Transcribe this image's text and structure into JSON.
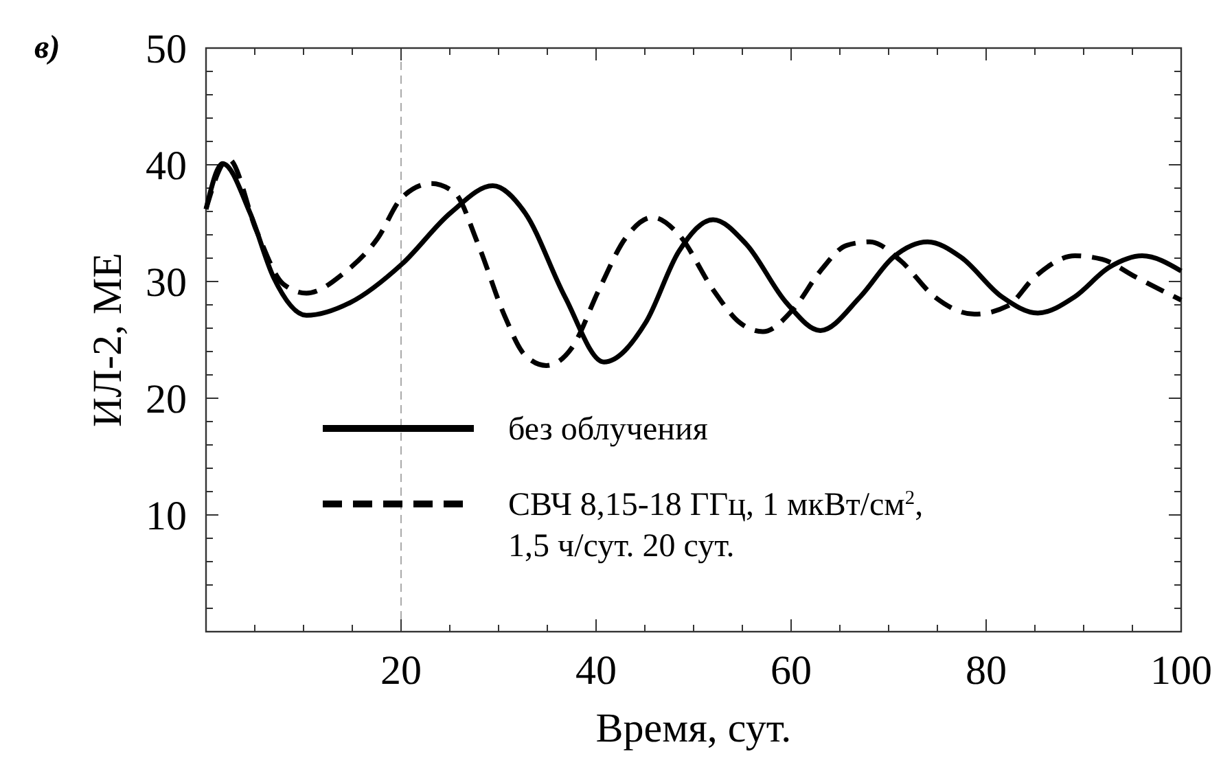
{
  "chart_data": {
    "type": "line",
    "annotations": [
      "в)"
    ],
    "xlabel": "Время, сут.",
    "ylabel": "ИЛ-2, МЕ",
    "xlim": [
      0,
      100
    ],
    "ylim": [
      0,
      50
    ],
    "xticks": [
      {
        "value": 5,
        "label": null
      },
      {
        "value": 10,
        "label": null
      },
      {
        "value": 15,
        "label": null
      },
      20,
      {
        "value": 25,
        "label": null
      },
      {
        "value": 30,
        "label": null
      },
      {
        "value": 35,
        "label": null
      },
      40,
      {
        "value": 45,
        "label": null
      },
      {
        "value": 50,
        "label": null
      },
      {
        "value": 55,
        "label": null
      },
      60,
      {
        "value": 65,
        "label": null
      },
      {
        "value": 70,
        "label": null
      },
      {
        "value": 75,
        "label": null
      },
      80,
      {
        "value": 85,
        "label": null
      },
      {
        "value": 90,
        "label": null
      },
      {
        "value": 95,
        "label": null
      },
      100
    ],
    "yticks": [
      {
        "value": 2,
        "label": null
      },
      {
        "value": 4,
        "label": null
      },
      {
        "value": 6,
        "label": null
      },
      {
        "value": 8,
        "label": null
      },
      10,
      {
        "value": 12,
        "label": null
      },
      {
        "value": 14,
        "label": null
      },
      {
        "value": 16,
        "label": null
      },
      {
        "value": 18,
        "label": null
      },
      20,
      {
        "value": 22,
        "label": null
      },
      {
        "value": 24,
        "label": null
      },
      {
        "value": 26,
        "label": null
      },
      {
        "value": 28,
        "label": null
      },
      30,
      {
        "value": 32,
        "label": null
      },
      {
        "value": 34,
        "label": null
      },
      {
        "value": 36,
        "label": null
      },
      {
        "value": 38,
        "label": null
      },
      40,
      {
        "value": 42,
        "label": null
      },
      {
        "value": 44,
        "label": null
      },
      {
        "value": 46,
        "label": null
      },
      {
        "value": 48,
        "label": null
      },
      50
    ],
    "grid": false,
    "legend": "bottom",
    "ref_lines": [
      {
        "axis": "x",
        "value": 20,
        "color": "#aaaaaa",
        "line_style": "dashed"
      }
    ],
    "series": [
      {
        "name": "без облучения",
        "color": "#000000",
        "line_style": "solid",
        "x": [
          0,
          1.7,
          4.5,
          6.9,
          10.3,
          14.8,
          20.1,
          25.1,
          29.4,
          32.7,
          36.8,
          40.8,
          45.1,
          48.5,
          52,
          55.4,
          59.5,
          63,
          67.1,
          70.5,
          74,
          77.4,
          81.6,
          85.3,
          89.1,
          92.6,
          96,
          100
        ],
        "values": [
          36.2,
          40.1,
          35.9,
          30.4,
          27.1,
          28.2,
          31.5,
          35.9,
          38.2,
          35.9,
          28.7,
          23.1,
          26.5,
          32.6,
          35.3,
          33.2,
          28.2,
          25.8,
          28.7,
          32.1,
          33.4,
          32.1,
          28.7,
          27.3,
          28.7,
          31.2,
          32.2,
          30.9
        ]
      },
      {
        "name": "СВЧ 8,15-18 ГГц, 1 мкВт/см$^{2}$,\n1,5 ч/сут.  20 сут.",
        "color": "#000000",
        "line_style": "dashed",
        "x": [
          0,
          2.3,
          5.2,
          7.9,
          10.3,
          14.1,
          17.6,
          20.1,
          23.1,
          25.5,
          27.9,
          30.6,
          32.7,
          34.9,
          37.5,
          40.3,
          43,
          45.8,
          48.5,
          52,
          54.7,
          57.1,
          60.2,
          63,
          65.7,
          68.1,
          71.2,
          74.7,
          78.8,
          82.2,
          85,
          89.1,
          91.9,
          95.3,
          100
        ],
        "values": [
          36.2,
          40.5,
          34.3,
          29.8,
          29,
          30.7,
          33.7,
          37.2,
          38.4,
          37.6,
          33.2,
          27.1,
          23.7,
          22.8,
          24.3,
          29.3,
          33.7,
          35.5,
          34,
          29.3,
          26.5,
          25.7,
          27.6,
          30.9,
          33.1,
          33.4,
          31.8,
          28.7,
          27.2,
          27.9,
          30.4,
          32.2,
          31.9,
          30.4,
          28.4
        ]
      }
    ]
  }
}
